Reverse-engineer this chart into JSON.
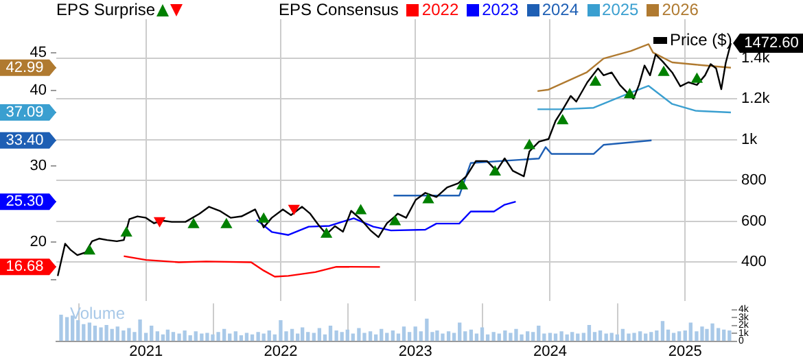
{
  "chart_data": {
    "type": "line",
    "annotations": [
      "EPS Surprise"
    ],
    "legend_title": "EPS Consensus",
    "legend": "top",
    "grid": true,
    "xlim": [
      "2020-05-03",
      "2025-05-07"
    ],
    "xticks": [
      {
        "value": "2021-01-01",
        "label": "2021"
      },
      {
        "value": "2022-01-01",
        "label": "2022"
      },
      {
        "value": "2023-01-01",
        "label": "2023"
      },
      {
        "value": "2024-01-01",
        "label": "2024"
      },
      {
        "value": "2025-01-01",
        "label": "2025"
      }
    ],
    "ylim": [
      12.2,
      49.4
    ],
    "yticks": [
      {
        "value": 15,
        "label": null
      },
      {
        "value": 16.68,
        "label": "16.68"
      },
      20,
      {
        "value": 25.3,
        "label": "25.30"
      },
      30,
      {
        "value": 33.4,
        "label": "33.40"
      },
      {
        "value": 37.09,
        "label": "37.09"
      },
      40,
      {
        "value": 42.99,
        "label": "42.99"
      },
      45
    ],
    "y2lim": [
      210,
      1590
    ],
    "y2ticks": [
      400,
      600,
      800,
      {
        "value": 1000,
        "label": "1k"
      },
      {
        "value": 1200,
        "label": "1.2k"
      },
      {
        "value": 1400,
        "label": "1.4k"
      }
    ],
    "y3lim": [
      0,
      4800
    ],
    "y3ticks": [
      0,
      {
        "value": 1000,
        "label": "1k"
      },
      {
        "value": 2000,
        "label": "2k"
      },
      {
        "value": 3000,
        "label": "3k"
      },
      {
        "value": 4000,
        "label": "4k"
      }
    ],
    "series": [
      {
        "name": "Volume",
        "type": "bar",
        "axis": "y3",
        "color": "#a9c9e8",
        "x": [
          "2020-05-16",
          "2020-06-01",
          "2020-06-16",
          "2020-07-01",
          "2020-07-16",
          "2020-08-01",
          "2020-08-16",
          "2020-09-01",
          "2020-09-16",
          "2020-10-01",
          "2020-10-16",
          "2020-11-01",
          "2020-11-16",
          "2020-12-01",
          "2020-12-16",
          "2021-01-01",
          "2021-01-16",
          "2021-02-01",
          "2021-02-16",
          "2021-03-01",
          "2021-03-16",
          "2021-04-01",
          "2021-04-16",
          "2021-05-01",
          "2021-05-16",
          "2021-06-01",
          "2021-06-16",
          "2021-07-01",
          "2021-07-16",
          "2021-08-01",
          "2021-08-16",
          "2021-09-01",
          "2021-09-16",
          "2021-10-01",
          "2021-10-16",
          "2021-11-01",
          "2021-11-16",
          "2021-12-01",
          "2021-12-16",
          "2022-01-01",
          "2022-01-16",
          "2022-02-01",
          "2022-02-16",
          "2022-03-01",
          "2022-03-16",
          "2022-04-01",
          "2022-04-16",
          "2022-05-01",
          "2022-05-16",
          "2022-06-01",
          "2022-06-16",
          "2022-07-01",
          "2022-07-16",
          "2022-08-01",
          "2022-08-16",
          "2022-09-01",
          "2022-09-16",
          "2022-10-01",
          "2022-10-16",
          "2022-11-01",
          "2022-11-16",
          "2022-12-01",
          "2022-12-16",
          "2023-01-01",
          "2023-01-16",
          "2023-02-01",
          "2023-02-16",
          "2023-03-01",
          "2023-03-16",
          "2023-04-01",
          "2023-04-16",
          "2023-05-01",
          "2023-05-16",
          "2023-06-01",
          "2023-06-16",
          "2023-07-01",
          "2023-07-16",
          "2023-08-01",
          "2023-08-16",
          "2023-09-01",
          "2023-09-16",
          "2023-10-01",
          "2023-10-16",
          "2023-11-01",
          "2023-11-16",
          "2023-12-01",
          "2023-12-16",
          "2024-01-01",
          "2024-01-16",
          "2024-02-01",
          "2024-02-16",
          "2024-03-01",
          "2024-03-16",
          "2024-04-01",
          "2024-04-16",
          "2024-05-01",
          "2024-05-16",
          "2024-06-01",
          "2024-06-16",
          "2024-07-01",
          "2024-07-16",
          "2024-08-01",
          "2024-08-16",
          "2024-09-01",
          "2024-09-16",
          "2024-10-01",
          "2024-10-16",
          "2024-11-01",
          "2024-11-16",
          "2024-12-01",
          "2024-12-16",
          "2025-01-01",
          "2025-01-16",
          "2025-02-01",
          "2025-02-16",
          "2025-03-01",
          "2025-03-16",
          "2025-04-01",
          "2025-04-16",
          "2025-05-01"
        ],
        "values": [
          3300,
          3000,
          3200,
          2600,
          2100,
          2300,
          1900,
          1700,
          2000,
          1500,
          1800,
          1300,
          1600,
          1100,
          2700,
          1000,
          1900,
          1200,
          800,
          1400,
          1100,
          900,
          1300,
          700,
          1200,
          900,
          1000,
          800,
          1100,
          1500,
          900,
          1200,
          700,
          1000,
          800,
          1100,
          900,
          1300,
          800,
          2600,
          1200,
          1500,
          900,
          1700,
          1100,
          1000,
          1600,
          800,
          1900,
          1300,
          1100,
          1400,
          900,
          1600,
          1000,
          1200,
          800,
          1500,
          1000,
          1300,
          900,
          1800,
          1100,
          1800,
          1200,
          2800,
          1100,
          1300,
          900,
          1200,
          1000,
          2300,
          1200,
          1400,
          900,
          1700,
          800,
          1100,
          900,
          1300,
          1000,
          1500,
          800,
          1200,
          1100,
          1900,
          900,
          1000,
          900,
          1200,
          800,
          1100,
          900,
          1000,
          2000,
          1100,
          1300,
          900,
          1000,
          800,
          1500,
          900,
          1000,
          1200,
          900,
          1100,
          1300,
          2500,
          1400,
          1000,
          1200,
          1300,
          2300,
          1200,
          1800,
          1500,
          2200,
          1600,
          1400,
          1300
        ]
      },
      {
        "name": "2022",
        "color": "#ff0000",
        "x": [
          "2020-11-02",
          "2021-01-01",
          "2021-03-31",
          "2021-06-13",
          "2021-10-13",
          "2021-11-16",
          "2021-12-16",
          "2022-01-22",
          "2022-04-05",
          "2022-06-01",
          "2022-09-27"
        ],
        "values": [
          18.1,
          17.6,
          17.3,
          17.4,
          17.3,
          16.2,
          15.4,
          15.5,
          16.0,
          16.7,
          16.68
        ]
      },
      {
        "name": "2023",
        "color": "#0000ff",
        "x": [
          "2021-10-28",
          "2021-12-08",
          "2022-01-22",
          "2022-03-18",
          "2022-05-13",
          "2022-07-18",
          "2022-09-09",
          "2022-10-27",
          "2023-01-28",
          "2023-02-27",
          "2023-04-30",
          "2023-05-31",
          "2023-08-02",
          "2023-08-31",
          "2023-09-30"
        ],
        "values": [
          22.9,
          21.3,
          20.9,
          22.0,
          22.1,
          23.1,
          22.0,
          21.5,
          21.6,
          22.4,
          22.4,
          24.0,
          24.0,
          24.9,
          25.3
        ]
      },
      {
        "name": "2024",
        "color": "#1e5fb4",
        "x": [
          "2022-11-03",
          "2023-04-30",
          "2023-05-31",
          "2023-12-02",
          "2023-12-20",
          "2024-01-05",
          "2024-04-28",
          "2024-05-25",
          "2024-10-02"
        ],
        "values": [
          26.1,
          26.1,
          30.4,
          31.0,
          32.5,
          31.6,
          31.6,
          32.8,
          33.4
        ]
      },
      {
        "name": "2025",
        "color": "#3a9fd0",
        "x": [
          "2023-11-28",
          "2024-02-04",
          "2024-04-28",
          "2024-07-27",
          "2024-09-24",
          "2024-11-27",
          "2025-01-30",
          "2025-05-05"
        ],
        "values": [
          37.5,
          37.5,
          37.7,
          39.5,
          40.6,
          38.2,
          37.3,
          37.09
        ]
      },
      {
        "name": "2026",
        "color": "#b07a30",
        "x": [
          "2023-11-28",
          "2023-12-28",
          "2024-04-10",
          "2024-05-25",
          "2024-08-07",
          "2024-09-24",
          "2024-10-06",
          "2024-11-27",
          "2025-01-30",
          "2025-05-05"
        ],
        "values": [
          39.9,
          40.1,
          42.4,
          44.2,
          45.2,
          46.1,
          45.0,
          43.7,
          43.4,
          42.99
        ]
      },
      {
        "name": "Price ($)",
        "axis": "y2",
        "color": "#000000",
        "x": [
          "2020-05-07",
          "2020-05-27",
          "2020-06-10",
          "2020-06-29",
          "2020-07-21",
          "2020-08-08",
          "2020-08-27",
          "2020-09-18",
          "2020-10-14",
          "2020-11-02",
          "2020-11-17",
          "2020-12-09",
          "2021-01-01",
          "2021-01-23",
          "2021-02-14",
          "2021-03-12",
          "2021-04-18",
          "2021-05-26",
          "2021-06-21",
          "2021-07-20",
          "2021-08-19",
          "2021-09-17",
          "2021-10-24",
          "2021-11-16",
          "2021-12-08",
          "2022-01-07",
          "2022-01-29",
          "2022-02-28",
          "2022-03-22",
          "2022-04-13",
          "2022-05-05",
          "2022-05-28",
          "2022-06-19",
          "2022-07-11",
          "2022-08-06",
          "2022-09-01",
          "2022-09-23",
          "2022-10-16",
          "2022-11-07",
          "2022-11-14",
          "2022-12-07",
          "2023-01-02",
          "2023-01-28",
          "2023-02-27",
          "2023-03-28",
          "2023-04-27",
          "2023-05-19",
          "2023-06-14",
          "2023-07-14",
          "2023-08-09",
          "2023-08-31",
          "2023-09-22",
          "2023-10-22",
          "2023-11-06",
          "2023-12-02",
          "2023-12-28",
          "2024-01-16",
          "2024-02-04",
          "2024-02-26",
          "2024-03-12",
          "2024-04-11",
          "2024-05-10",
          "2024-05-25",
          "2024-06-16",
          "2024-07-08",
          "2024-07-30",
          "2024-08-14",
          "2024-08-29",
          "2024-09-13",
          "2024-09-28",
          "2024-10-13",
          "2024-11-01",
          "2024-11-27",
          "2024-12-19",
          "2025-01-10",
          "2025-02-02",
          "2025-02-24",
          "2025-03-11",
          "2025-03-26",
          "2025-04-09",
          "2025-04-21",
          "2025-05-05"
        ],
        "values": [
          332,
          490,
          461,
          434,
          447,
          502,
          515,
          508,
          502,
          508,
          610,
          624,
          617,
          590,
          603,
          597,
          597,
          637,
          671,
          651,
          617,
          624,
          658,
          570,
          617,
          658,
          630,
          671,
          637,
          583,
          536,
          576,
          549,
          651,
          610,
          556,
          522,
          590,
          624,
          637,
          617,
          705,
          739,
          719,
          766,
          786,
          820,
          895,
          895,
          847,
          908,
          847,
          820,
          942,
          990,
          1003,
          1092,
          1146,
          1214,
          1186,
          1281,
          1349,
          1315,
          1329,
          1268,
          1227,
          1200,
          1268,
          1363,
          1315,
          1417,
          1383,
          1329,
          1261,
          1281,
          1268,
          1315,
          1370,
          1349,
          1247,
          1376,
          1472.6
        ],
        "value_labels": [
          null,
          null,
          null,
          null,
          null,
          null,
          null,
          null,
          null,
          null,
          null,
          null,
          null,
          null,
          null,
          null,
          null,
          null,
          null,
          null,
          null,
          null,
          null,
          null,
          null,
          null,
          null,
          null,
          null,
          null,
          null,
          null,
          null,
          null,
          null,
          null,
          null,
          null,
          null,
          null,
          null,
          null,
          null,
          null,
          null,
          null,
          null,
          null,
          null,
          null,
          null,
          null,
          null,
          null,
          null,
          null,
          null,
          null,
          null,
          null,
          null,
          null,
          null,
          null,
          null,
          null,
          null,
          null,
          null,
          null,
          null,
          null,
          null,
          null,
          null,
          null,
          null,
          null,
          null,
          null,
          null,
          "1472.60"
        ]
      },
      {
        "type": "scatter",
        "axis": "y2",
        "marker": "triangle",
        "color": "#008000",
        "x": [
          "2020-08-01",
          "2020-11-09",
          "2021-05-10",
          "2021-08-07",
          "2021-11-16",
          "2022-05-05",
          "2022-08-06",
          "2022-11-07",
          "2023-02-05",
          "2023-05-08",
          "2023-08-05",
          "2023-11-06",
          "2024-02-04",
          "2024-05-03",
          "2024-08-04",
          "2024-11-04",
          "2025-02-02"
        ],
        "values": [
          454,
          542,
          583,
          583,
          610,
          536,
          651,
          597,
          705,
          773,
          841,
          970,
          1092,
          1281,
          1220,
          1329,
          1295
        ]
      },
      {
        "type": "scatter",
        "axis": "y2",
        "marker": "triangle",
        "color": "#ff0000",
        "x": [
          "2021-02-07",
          "2022-02-06"
        ],
        "values": [
          603,
          664
        ]
      }
    ]
  }
}
